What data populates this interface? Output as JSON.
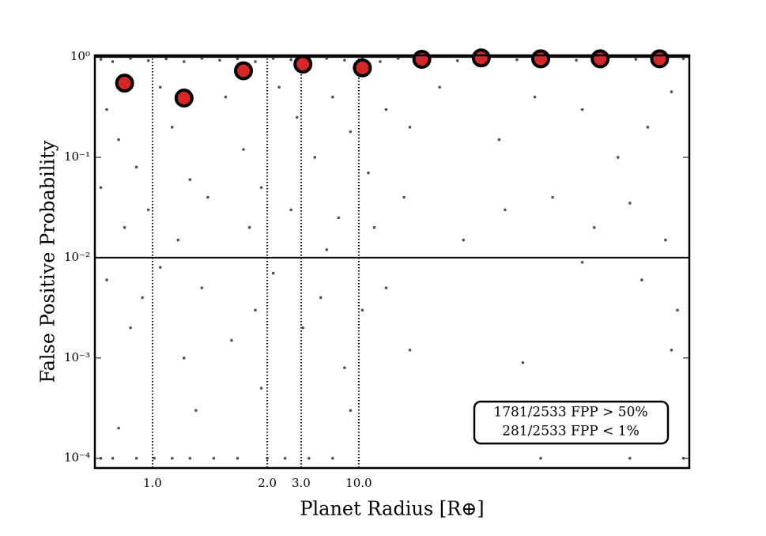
{
  "chart_data": {
    "type": "scatter",
    "xlabel": "Planet Radius [R⊕]",
    "ylabel": "False Positive Probability",
    "annotations": [
      "1781/2533 FPP > 50%",
      "281/2533 FPP < 1%"
    ],
    "xlim": [
      0,
      10
    ],
    "xticks": [
      {
        "value": 0.97,
        "label": "1.0"
      },
      {
        "value": 2.9,
        "label": "2.0"
      },
      {
        "value": 3.47,
        "label": "3.0"
      },
      {
        "value": 4.44,
        "label": "10.0"
      }
    ],
    "ylim": [
      8e-05,
      1.04
    ],
    "yscale": "log",
    "yticks": [
      {
        "value": 1,
        "label": "10⁰"
      },
      {
        "value": 0.1,
        "label": "10⁻¹"
      },
      {
        "value": 0.01,
        "label": "10⁻²"
      },
      {
        "value": 0.001,
        "label": "10⁻³"
      },
      {
        "value": 0.0001,
        "label": "10⁻⁴"
      }
    ],
    "hlines": [
      0.01
    ],
    "series": [
      {
        "color": "#333333",
        "x": [
          0.1,
          0.3,
          0.6,
          0.9,
          1.2,
          1.5,
          1.8,
          2.1,
          2.4,
          2.7,
          3.0,
          3.3,
          3.6,
          3.9,
          4.2,
          4.5,
          4.8,
          5.1,
          5.6,
          6.1,
          6.6,
          7.1,
          7.6,
          8.1,
          8.6,
          9.1,
          9.6,
          9.9,
          0.2,
          0.4,
          0.7,
          1.1,
          1.3,
          1.6,
          2.2,
          2.5,
          3.1,
          3.4,
          3.7,
          4.0,
          4.3,
          4.6,
          4.9,
          5.3,
          5.8,
          6.8,
          7.4,
          8.2,
          8.8,
          9.3,
          9.7,
          0.1,
          0.5,
          0.9,
          1.4,
          1.9,
          2.6,
          2.8,
          3.3,
          3.9,
          4.1,
          4.7,
          5.2,
          6.2,
          6.9,
          7.7,
          8.4,
          9.0,
          9.6,
          0.2,
          0.6,
          0.8,
          1.1,
          1.5,
          1.8,
          2.3,
          2.7,
          3.0,
          3.5,
          3.8,
          4.2,
          4.5,
          4.9,
          5.3,
          8.2,
          9.2,
          9.8,
          9.7,
          7.2,
          0.1,
          0.3,
          0.7,
          1.0,
          1.3,
          1.6,
          2.0,
          2.4,
          2.9,
          3.2,
          3.6,
          4.0,
          7.5,
          9.0,
          9.9,
          0.4,
          1.7,
          2.8,
          4.3,
          9.5
        ],
        "values": [
          0.95,
          0.9,
          0.97,
          0.92,
          0.96,
          0.9,
          0.97,
          0.93,
          0.96,
          0.9,
          0.97,
          0.94,
          0.9,
          0.97,
          0.93,
          0.96,
          0.9,
          0.97,
          0.95,
          0.92,
          0.97,
          0.94,
          0.96,
          0.93,
          0.97,
          0.95,
          0.92,
          0.96,
          0.3,
          0.15,
          0.08,
          0.5,
          0.2,
          0.06,
          0.4,
          0.12,
          0.5,
          0.25,
          0.1,
          0.4,
          0.18,
          0.07,
          0.3,
          0.2,
          0.5,
          0.15,
          0.4,
          0.3,
          0.1,
          0.2,
          0.45,
          0.05,
          0.02,
          0.03,
          0.015,
          0.04,
          0.02,
          0.05,
          0.03,
          0.012,
          0.025,
          0.02,
          0.04,
          0.015,
          0.03,
          0.04,
          0.02,
          0.035,
          0.015,
          0.006,
          0.002,
          0.004,
          0.008,
          0.001,
          0.005,
          0.0015,
          0.003,
          0.007,
          0.002,
          0.004,
          0.0008,
          0.003,
          0.005,
          0.0012,
          0.009,
          0.006,
          0.003,
          0.0012,
          0.0009,
          0.0001,
          0.0001,
          0.0001,
          0.0001,
          0.0001,
          0.0001,
          0.0001,
          0.0001,
          0.0001,
          0.0001,
          0.0001,
          0.0001,
          0.0001,
          0.0001,
          0.0001,
          0.0002,
          0.0003,
          0.0005,
          0.0003,
          0.0002
        ]
      },
      {
        "color": "#d62728",
        "x": [
          0.5,
          1.5,
          2.5,
          3.5,
          4.5,
          5.5,
          6.5,
          7.5,
          8.5,
          9.5
        ],
        "values": [
          0.55,
          0.39,
          0.73,
          0.85,
          0.78,
          0.95,
          0.98,
          0.96,
          0.96,
          0.96
        ]
      }
    ]
  }
}
